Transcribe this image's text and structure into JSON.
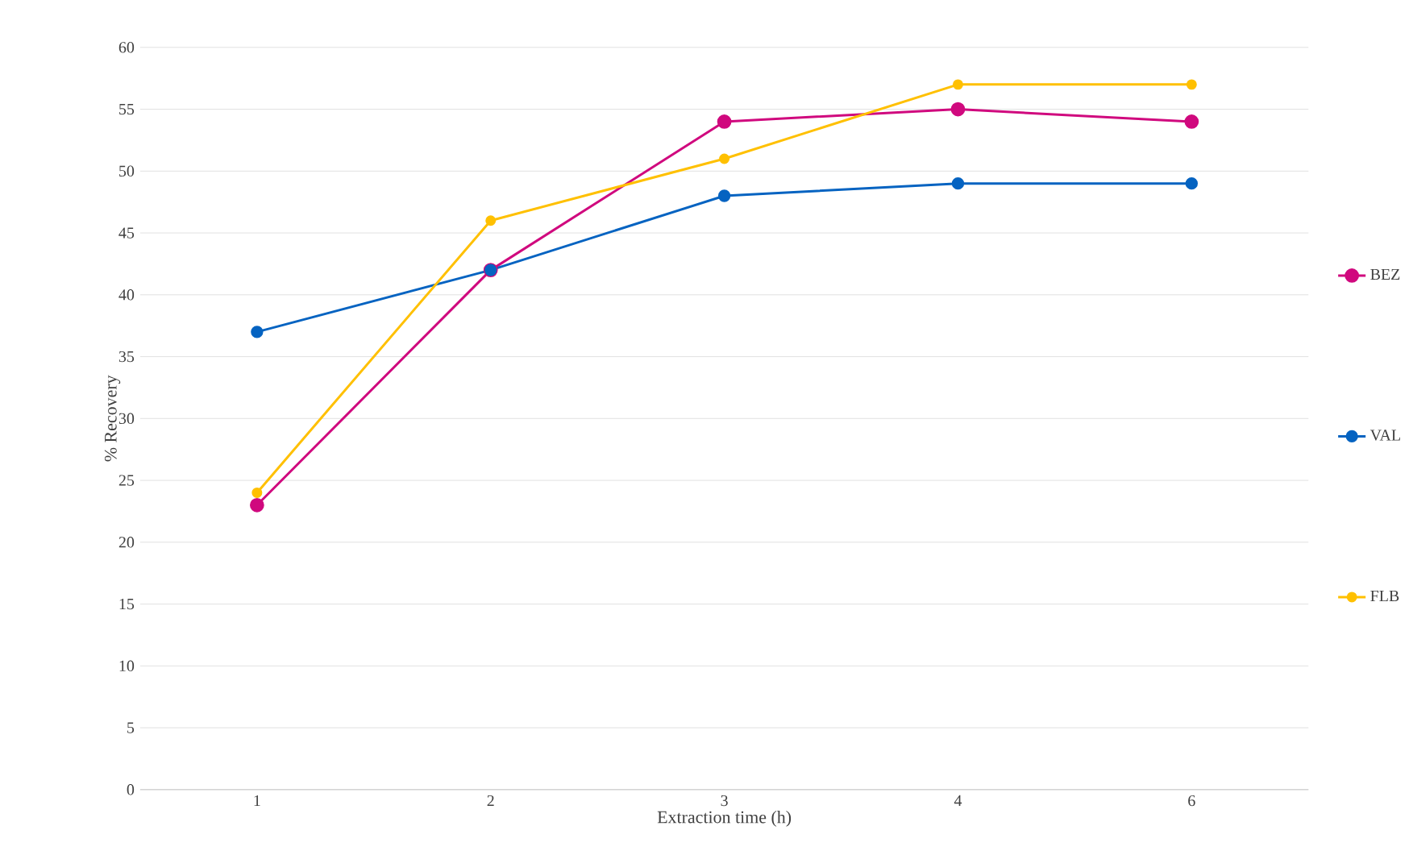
{
  "chart_data": {
    "type": "line",
    "xlabel": "Extraction time (h)",
    "ylabel": "% Recovery",
    "categories": [
      "1",
      "2",
      "3",
      "4",
      "6"
    ],
    "series": [
      {
        "name": "BEZ",
        "color": "#d0097e",
        "values": [
          23,
          42,
          54,
          55,
          54
        ]
      },
      {
        "name": "VAL",
        "color": "#0563c1",
        "values": [
          37,
          42,
          48,
          49,
          49
        ]
      },
      {
        "name": "FLB",
        "color": "#ffc000",
        "values": [
          24,
          46,
          51,
          57,
          57
        ]
      }
    ],
    "ylim": [
      0,
      60
    ],
    "yticks": [
      0,
      5,
      10,
      15,
      20,
      25,
      30,
      35,
      40,
      45,
      50,
      55,
      60
    ],
    "grid": "y",
    "legend": "right",
    "marker": "circle",
    "line_style": "solid"
  }
}
